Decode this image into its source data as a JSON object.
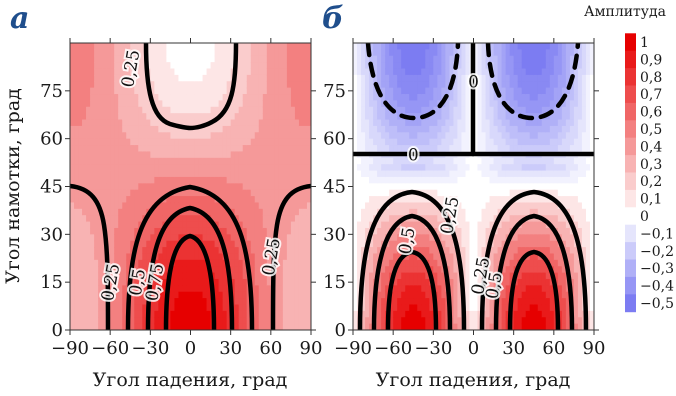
{
  "chart_data": [
    {
      "type": "heatmap",
      "panel_label": "a",
      "panel_letter": "а",
      "xlabel": "Угол падения, град",
      "ylabel": "Угол намотки, град",
      "x_ticks": [
        -90,
        -60,
        -30,
        0,
        30,
        60,
        90
      ],
      "x_tick_labels": [
        "−90",
        "−60",
        "−30",
        "0",
        "30",
        "60",
        "90"
      ],
      "y_ticks": [
        0,
        15,
        30,
        45,
        60,
        75
      ],
      "y_tick_labels": [
        "0",
        "15",
        "30",
        "45",
        "60",
        "75"
      ],
      "xlim": [
        -90,
        90
      ],
      "ylim": [
        0,
        90
      ],
      "grid": false,
      "contour_levels": [
        0.25,
        0.5,
        0.75
      ],
      "contour_labels": [
        {
          "text": "0,25",
          "x": -45,
          "y": 82
        },
        {
          "text": "0,25",
          "x": -60,
          "y": 15
        },
        {
          "text": "0,5",
          "x": -40,
          "y": 15
        },
        {
          "text": "0,75",
          "x": -27,
          "y": 15
        },
        {
          "text": "0,25",
          "x": 60,
          "y": 23
        }
      ],
      "field_samples": [
        {
          "theta": 0,
          "phi": 0,
          "amplitude": 1.0
        },
        {
          "theta": 0,
          "phi": 30,
          "amplitude": 0.75
        },
        {
          "theta": 0,
          "phi": 45,
          "amplitude": 0.5
        },
        {
          "theta": 0,
          "phi": 90,
          "amplitude": 0.0
        },
        {
          "theta": 90,
          "phi": 0,
          "amplitude": 0.25
        },
        {
          "theta": 90,
          "phi": 90,
          "amplitude": 0.5
        }
      ]
    },
    {
      "type": "heatmap",
      "panel_label": "b",
      "panel_letter": "б",
      "xlabel": "Угол падения, град",
      "ylabel": "",
      "x_ticks": [
        -90,
        -60,
        -30,
        0,
        30,
        60,
        90
      ],
      "x_tick_labels": [
        "−90",
        "−60",
        "−30",
        "0",
        "30",
        "60",
        "90"
      ],
      "y_ticks": [
        0,
        15,
        30,
        45,
        60,
        75
      ],
      "y_tick_labels": [
        "0",
        "15",
        "30",
        "45",
        "60",
        "75"
      ],
      "xlim": [
        -90,
        90
      ],
      "ylim": [
        0,
        90
      ],
      "grid": false,
      "contour_levels": [
        -0.5,
        -0.25,
        0,
        0.25,
        0.5,
        0.75
      ],
      "contour_labels": [
        {
          "text": "0",
          "x": -45,
          "y": 55
        },
        {
          "text": "0",
          "x": 0,
          "y": 78
        },
        {
          "text": "0,5",
          "x": -50,
          "y": 28
        },
        {
          "text": "0,25",
          "x": -18,
          "y": 36
        },
        {
          "text": "0,25",
          "x": 5,
          "y": 17
        },
        {
          "text": "0,5",
          "x": 15,
          "y": 14
        }
      ],
      "field_samples": [
        {
          "theta": -45,
          "phi": 0,
          "amplitude": 1.0
        },
        {
          "theta": 45,
          "phi": 0,
          "amplitude": 1.0
        },
        {
          "theta": 0,
          "phi": 0,
          "amplitude": 0.0
        },
        {
          "theta": -45,
          "phi": 75,
          "amplitude": -0.5
        },
        {
          "theta": 45,
          "phi": 75,
          "amplitude": -0.5
        },
        {
          "theta": 0,
          "phi": 55,
          "amplitude": 0.0
        }
      ]
    }
  ],
  "colorbar": {
    "title": "Амплитуда",
    "tick_values": [
      1,
      0.9,
      0.8,
      0.7,
      0.6,
      0.5,
      0.4,
      0.3,
      0.2,
      0.1,
      0,
      -0.1,
      -0.2,
      -0.3,
      -0.4,
      -0.5
    ],
    "tick_labels": [
      "1",
      "0,9",
      "0,8",
      "0,7",
      "0,6",
      "0,5",
      "0,4",
      "0,3",
      "0,2",
      "0,1",
      "0",
      "−0,1",
      "−0,2",
      "−0,3",
      "−0,4",
      "−0,5"
    ],
    "range": [
      -0.5,
      1
    ],
    "color_max": "#e60000",
    "color_zero": "#ffffff",
    "color_min": "#7c7cf2"
  },
  "colors": {
    "panel_letter": "#1f4e8c",
    "contour": "#000000"
  }
}
